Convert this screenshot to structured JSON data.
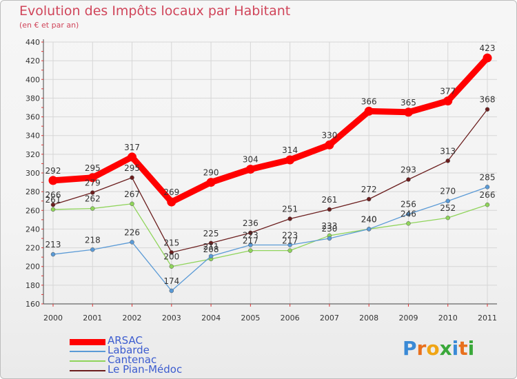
{
  "title": "Evolution des Impôts locaux par Habitant",
  "subtitle": "(en € et par an)",
  "logo": {
    "text": "Proxiti",
    "letters": [
      "P",
      "r",
      "o",
      "x",
      "i",
      "t",
      "i"
    ],
    "colors": [
      "#3a8ad6",
      "#e8701d",
      "#f0a515",
      "#3aa83a",
      "#3a8ad6",
      "#e8701d",
      "#3aa83a"
    ]
  },
  "chart_data": {
    "type": "line",
    "x": [
      "2000",
      "2001",
      "2002",
      "2003",
      "2004",
      "2005",
      "2006",
      "2007",
      "2008",
      "2009",
      "2010",
      "2011"
    ],
    "ylim": [
      160,
      440
    ],
    "yticks": [
      160,
      180,
      200,
      220,
      240,
      260,
      280,
      300,
      320,
      340,
      360,
      380,
      400,
      420,
      440
    ],
    "grid": true,
    "legend_position": "bottom-left",
    "series": [
      {
        "name": "Le Pian-Médoc",
        "color": "#6b1e1e",
        "width": 1.3,
        "values": [
          266,
          279,
          295,
          215,
          225,
          236,
          251,
          261,
          272,
          293,
          313,
          368
        ]
      },
      {
        "name": "Cantenac",
        "color": "#8fd45a",
        "width": 1.3,
        "values": [
          261,
          262,
          267,
          200,
          208,
          217,
          217,
          233,
          240,
          246,
          252,
          266
        ]
      },
      {
        "name": "Labarde",
        "color": "#5a9ad6",
        "width": 1.3,
        "values": [
          213,
          218,
          226,
          174,
          211,
          223,
          223,
          230,
          240,
          256,
          270,
          285
        ]
      },
      {
        "name": "ARSAC",
        "color": "#ff0000",
        "width": 9,
        "values": [
          292,
          295,
          317,
          269,
          290,
          304,
          314,
          330,
          366,
          365,
          377,
          423
        ]
      }
    ],
    "legend": [
      "ARSAC",
      "Labarde",
      "Cantenac",
      "Le Pian-Médoc"
    ]
  }
}
